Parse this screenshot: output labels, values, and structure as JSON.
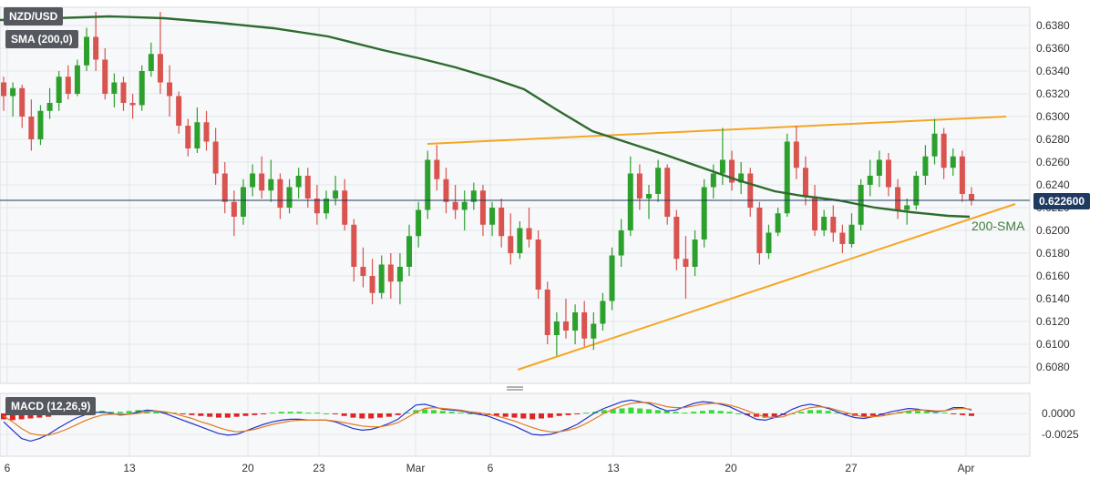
{
  "chart_data": [
    {
      "type": "candlestick",
      "title": "NZD/USD",
      "indicator_label": "SMA (200,0)",
      "annotation": "200-SMA",
      "current_price": "0.622600",
      "ylim": [
        0.6064,
        0.6398
      ],
      "y_ticks": [
        "0.6380",
        "0.6360",
        "0.6340",
        "0.6320",
        "0.6300",
        "0.6280",
        "0.6260",
        "0.6240",
        "0.6220",
        "0.6200",
        "0.6180",
        "0.6160",
        "0.6140",
        "0.6120",
        "0.6100",
        "0.6080"
      ],
      "x_labels": [
        "6",
        "13",
        "20",
        "23",
        "Mar",
        "6",
        "13",
        "20",
        "27",
        "Apr"
      ],
      "grid": true,
      "colors": {
        "up": "#2ca02c",
        "down": "#d9534f",
        "sma": "#2e6b2e",
        "trendline": "#f5a623",
        "price_line": "#1f3a60"
      },
      "candles": [
        [
          0.633,
          0.6335,
          0.6305,
          0.6318
        ],
        [
          0.6318,
          0.633,
          0.63,
          0.6325
        ],
        [
          0.6325,
          0.6328,
          0.629,
          0.63
        ],
        [
          0.63,
          0.6315,
          0.627,
          0.628
        ],
        [
          0.628,
          0.631,
          0.6275,
          0.6305
        ],
        [
          0.6305,
          0.6325,
          0.6298,
          0.6312
        ],
        [
          0.6312,
          0.634,
          0.6305,
          0.6335
        ],
        [
          0.6335,
          0.6345,
          0.6315,
          0.632
        ],
        [
          0.632,
          0.635,
          0.6318,
          0.6345
        ],
        [
          0.6345,
          0.6378,
          0.634,
          0.637
        ],
        [
          0.637,
          0.6392,
          0.634,
          0.635
        ],
        [
          0.635,
          0.636,
          0.6315,
          0.632
        ],
        [
          0.632,
          0.6338,
          0.6308,
          0.633
        ],
        [
          0.633,
          0.6335,
          0.6305,
          0.6312
        ],
        [
          0.6312,
          0.632,
          0.6298,
          0.631
        ],
        [
          0.631,
          0.6345,
          0.6305,
          0.634
        ],
        [
          0.634,
          0.6365,
          0.6335,
          0.6355
        ],
        [
          0.6355,
          0.6392,
          0.632,
          0.633
        ],
        [
          0.633,
          0.6345,
          0.63,
          0.6318
        ],
        [
          0.6318,
          0.6322,
          0.6285,
          0.6292
        ],
        [
          0.6292,
          0.6298,
          0.6265,
          0.6272
        ],
        [
          0.6272,
          0.6308,
          0.6268,
          0.6295
        ],
        [
          0.6295,
          0.6305,
          0.627,
          0.6278
        ],
        [
          0.6278,
          0.629,
          0.624,
          0.625
        ],
        [
          0.625,
          0.626,
          0.6215,
          0.6225
        ],
        [
          0.6225,
          0.6235,
          0.6195,
          0.6212
        ],
        [
          0.6212,
          0.6245,
          0.6205,
          0.6238
        ],
        [
          0.6238,
          0.6258,
          0.623,
          0.625
        ],
        [
          0.625,
          0.6265,
          0.6228,
          0.6235
        ],
        [
          0.6235,
          0.6262,
          0.6225,
          0.6245
        ],
        [
          0.6245,
          0.625,
          0.621,
          0.622
        ],
        [
          0.622,
          0.6245,
          0.6215,
          0.6238
        ],
        [
          0.6238,
          0.6255,
          0.6228,
          0.6248
        ],
        [
          0.6248,
          0.6255,
          0.622,
          0.6228
        ],
        [
          0.6228,
          0.624,
          0.6205,
          0.6215
        ],
        [
          0.6215,
          0.6235,
          0.621,
          0.6228
        ],
        [
          0.6228,
          0.6248,
          0.6222,
          0.6235
        ],
        [
          0.6235,
          0.6245,
          0.62,
          0.6205
        ],
        [
          0.6205,
          0.621,
          0.6155,
          0.6168
        ],
        [
          0.6168,
          0.6185,
          0.615,
          0.616
        ],
        [
          0.616,
          0.6175,
          0.6135,
          0.6145
        ],
        [
          0.6145,
          0.6178,
          0.614,
          0.617
        ],
        [
          0.617,
          0.618,
          0.614,
          0.6155
        ],
        [
          0.6155,
          0.618,
          0.6135,
          0.6168
        ],
        [
          0.6168,
          0.6205,
          0.616,
          0.6195
        ],
        [
          0.6195,
          0.6225,
          0.6185,
          0.6218
        ],
        [
          0.6218,
          0.627,
          0.621,
          0.6262
        ],
        [
          0.6262,
          0.6275,
          0.6235,
          0.6245
        ],
        [
          0.6245,
          0.6255,
          0.6215,
          0.6225
        ],
        [
          0.6225,
          0.624,
          0.621,
          0.6218
        ],
        [
          0.6218,
          0.6235,
          0.62,
          0.6225
        ],
        [
          0.6225,
          0.6242,
          0.6218,
          0.6235
        ],
        [
          0.6235,
          0.624,
          0.6195,
          0.6205
        ],
        [
          0.6205,
          0.6225,
          0.6195,
          0.622
        ],
        [
          0.622,
          0.6228,
          0.6185,
          0.6195
        ],
        [
          0.6195,
          0.6215,
          0.617,
          0.618
        ],
        [
          0.618,
          0.6208,
          0.6175,
          0.6202
        ],
        [
          0.6202,
          0.622,
          0.6185,
          0.6192
        ],
        [
          0.6192,
          0.62,
          0.614,
          0.6148
        ],
        [
          0.6148,
          0.6155,
          0.61,
          0.6108
        ],
        [
          0.6108,
          0.6128,
          0.609,
          0.612
        ],
        [
          0.612,
          0.614,
          0.6105,
          0.6112
        ],
        [
          0.6112,
          0.6135,
          0.61,
          0.6128
        ],
        [
          0.6128,
          0.6138,
          0.6098,
          0.6105
        ],
        [
          0.6105,
          0.6128,
          0.6095,
          0.6118
        ],
        [
          0.6118,
          0.6145,
          0.6112,
          0.6138
        ],
        [
          0.6138,
          0.6185,
          0.613,
          0.6178
        ],
        [
          0.6178,
          0.621,
          0.6168,
          0.62
        ],
        [
          0.62,
          0.6265,
          0.6195,
          0.625
        ],
        [
          0.625,
          0.6258,
          0.6218,
          0.6228
        ],
        [
          0.6228,
          0.624,
          0.621,
          0.6232
        ],
        [
          0.6232,
          0.6262,
          0.6225,
          0.6255
        ],
        [
          0.6255,
          0.6258,
          0.6205,
          0.6212
        ],
        [
          0.6212,
          0.6218,
          0.6165,
          0.6175
        ],
        [
          0.6175,
          0.6195,
          0.614,
          0.6168
        ],
        [
          0.6168,
          0.62,
          0.616,
          0.6192
        ],
        [
          0.6192,
          0.6245,
          0.6185,
          0.6238
        ],
        [
          0.6238,
          0.6258,
          0.6228,
          0.625
        ],
        [
          0.625,
          0.629,
          0.624,
          0.6262
        ],
        [
          0.6262,
          0.627,
          0.6235,
          0.6242
        ],
        [
          0.6242,
          0.626,
          0.6232,
          0.625
        ],
        [
          0.625,
          0.6255,
          0.6212,
          0.622
        ],
        [
          0.622,
          0.6225,
          0.617,
          0.618
        ],
        [
          0.618,
          0.6205,
          0.6175,
          0.6198
        ],
        [
          0.6198,
          0.622,
          0.6195,
          0.6215
        ],
        [
          0.6215,
          0.6285,
          0.6212,
          0.6278
        ],
        [
          0.6278,
          0.6292,
          0.6245,
          0.6255
        ],
        [
          0.6255,
          0.6265,
          0.6222,
          0.623
        ],
        [
          0.623,
          0.624,
          0.6195,
          0.62
        ],
        [
          0.62,
          0.6218,
          0.6195,
          0.6212
        ],
        [
          0.6212,
          0.6222,
          0.619,
          0.6198
        ],
        [
          0.6198,
          0.6205,
          0.618,
          0.6188
        ],
        [
          0.6188,
          0.6215,
          0.6185,
          0.6205
        ],
        [
          0.6205,
          0.6245,
          0.62,
          0.624
        ],
        [
          0.624,
          0.6262,
          0.623,
          0.6248
        ],
        [
          0.6248,
          0.627,
          0.6238,
          0.6262
        ],
        [
          0.6262,
          0.6268,
          0.623,
          0.6238
        ],
        [
          0.6238,
          0.6245,
          0.621,
          0.6218
        ],
        [
          0.6218,
          0.6228,
          0.6205,
          0.6222
        ],
        [
          0.6222,
          0.6252,
          0.6218,
          0.6248
        ],
        [
          0.6248,
          0.6275,
          0.624,
          0.6265
        ],
        [
          0.6265,
          0.6298,
          0.6258,
          0.6285
        ],
        [
          0.6285,
          0.629,
          0.6245,
          0.6255
        ],
        [
          0.6255,
          0.6272,
          0.6248,
          0.6265
        ],
        [
          0.6265,
          0.627,
          0.6225,
          0.6232
        ],
        [
          0.6232,
          0.6238,
          0.6222,
          0.6226
        ]
      ]
    },
    {
      "type": "macd",
      "title": "MACD (12,26,9)",
      "y_ticks": [
        "0.0000",
        "-0.0025"
      ],
      "ylim": [
        -0.004,
        0.0018
      ],
      "colors": {
        "hist_up": "#3ad93a",
        "hist_down": "#e02424",
        "macd": "#2233cc",
        "signal": "#e07b20"
      },
      "histogram": [
        -0.0007,
        -0.0008,
        -0.0007,
        -0.0006,
        -0.0005,
        -0.0004,
        -0.0002,
        -0.0001,
        0.0001,
        0.0002,
        0.0003,
        0.0003,
        0.0002,
        0.0002,
        0.0003,
        0.0004,
        0.0004,
        0.0003,
        0.0002,
        0.0001,
        -0.0001,
        -0.0002,
        -0.0003,
        -0.0004,
        -0.0005,
        -0.0005,
        -0.0004,
        -0.0003,
        -0.0002,
        -0.0001,
        0.0001,
        0.0002,
        0.0002,
        0.0002,
        0.0001,
        0.0001,
        0.0,
        -0.0001,
        -0.0003,
        -0.0005,
        -0.0006,
        -0.0006,
        -0.0005,
        -0.0004,
        -0.0002,
        0.0001,
        0.0004,
        0.0005,
        0.0004,
        0.0003,
        0.0002,
        0.0001,
        0.0,
        -0.0001,
        -0.0002,
        -0.0003,
        -0.0004,
        -0.0005,
        -0.0006,
        -0.0007,
        -0.0006,
        -0.0005,
        -0.0003,
        -0.0002,
        -0.0001,
        0.0001,
        0.0002,
        0.0004,
        0.0005,
        0.0006,
        0.0007,
        0.0006,
        0.0005,
        0.0004,
        0.0003,
        0.0002,
        0.0001,
        0.0002,
        0.0003,
        0.0004,
        0.0003,
        0.0002,
        0.0,
        -0.0002,
        -0.0004,
        -0.0005,
        -0.0004,
        -0.0002,
        0.0,
        0.0002,
        0.0004,
        0.0004,
        0.0003,
        0.0001,
        -0.0001,
        -0.0003,
        -0.0004,
        -0.0003,
        -0.0002,
        0.0,
        0.0002,
        0.0003,
        0.0003,
        0.0002,
        0.0001,
        0.0001,
        -0.0001,
        -0.0002,
        -0.0003
      ],
      "macd": [
        -0.001,
        -0.002,
        -0.003,
        -0.0033,
        -0.003,
        -0.0025,
        -0.0018,
        -0.0012,
        -0.0006,
        -0.0002,
        0.0001,
        0.0002,
        0.0,
        -0.0002,
        -0.0001,
        0.0002,
        0.0004,
        0.0003,
        0.0,
        -0.0004,
        -0.0008,
        -0.0012,
        -0.0016,
        -0.002,
        -0.0024,
        -0.0026,
        -0.0025,
        -0.0021,
        -0.0017,
        -0.0013,
        -0.001,
        -0.0008,
        -0.0007,
        -0.0007,
        -0.0008,
        -0.0008,
        -0.0008,
        -0.001,
        -0.0014,
        -0.0018,
        -0.002,
        -0.0019,
        -0.0016,
        -0.0012,
        -0.0007,
        0.0002,
        0.001,
        0.0011,
        0.0008,
        0.0005,
        0.0004,
        0.0003,
        0.0001,
        -0.0001,
        -0.0003,
        -0.0007,
        -0.0011,
        -0.0015,
        -0.002,
        -0.0025,
        -0.0026,
        -0.0025,
        -0.0022,
        -0.0018,
        -0.0013,
        -0.0006,
        0.0001,
        0.0006,
        0.001,
        0.0014,
        0.0016,
        0.0014,
        0.0012,
        0.0007,
        0.0003,
        0.0004,
        0.0008,
        0.0012,
        0.0014,
        0.0013,
        0.0011,
        0.0008,
        0.0003,
        -0.0002,
        -0.0007,
        -0.0008,
        -0.0005,
        -0.0001,
        0.0005,
        0.0009,
        0.0011,
        0.0009,
        0.0006,
        0.0002,
        -0.0002,
        -0.0005,
        -0.0006,
        -0.0004,
        -0.0001,
        0.0002,
        0.0004,
        0.0006,
        0.0005,
        0.0003,
        0.0002,
        0.0003,
        0.0007,
        0.0007,
        0.0004
      ],
      "signal": [
        -0.0003,
        -0.001,
        -0.0018,
        -0.0024,
        -0.0026,
        -0.0026,
        -0.0023,
        -0.0019,
        -0.0014,
        -0.0009,
        -0.0005,
        -0.0002,
        -0.0001,
        -0.0001,
        -0.0001,
        0.0,
        0.0002,
        0.0003,
        0.0002,
        0.0,
        -0.0003,
        -0.0006,
        -0.001,
        -0.0013,
        -0.0017,
        -0.002,
        -0.0022,
        -0.0021,
        -0.0019,
        -0.0016,
        -0.0013,
        -0.0011,
        -0.0009,
        -0.0008,
        -0.0008,
        -0.0008,
        -0.0008,
        -0.0009,
        -0.0011,
        -0.0013,
        -0.0015,
        -0.0016,
        -0.0016,
        -0.0014,
        -0.0011,
        -0.0005,
        0.0001,
        0.0006,
        0.0007,
        0.0006,
        0.0005,
        0.0004,
        0.0002,
        0.0001,
        -0.0001,
        -0.0003,
        -0.0006,
        -0.0009,
        -0.0013,
        -0.0017,
        -0.002,
        -0.0022,
        -0.0022,
        -0.002,
        -0.0017,
        -0.0012,
        -0.0006,
        0.0,
        0.0005,
        0.0009,
        0.0012,
        0.0013,
        0.0013,
        0.0011,
        0.0008,
        0.0007,
        0.0007,
        0.0009,
        0.0011,
        0.0012,
        0.0012,
        0.001,
        0.0007,
        0.0003,
        -0.0001,
        -0.0004,
        -0.0005,
        -0.0004,
        0.0,
        0.0004,
        0.0007,
        0.0008,
        0.0007,
        0.0004,
        0.0001,
        -0.0002,
        -0.0004,
        -0.0004,
        -0.0003,
        -0.0001,
        0.0001,
        0.0003,
        0.0004,
        0.0004,
        0.0003,
        0.0003,
        0.0005,
        0.0006,
        0.0005
      ]
    }
  ]
}
